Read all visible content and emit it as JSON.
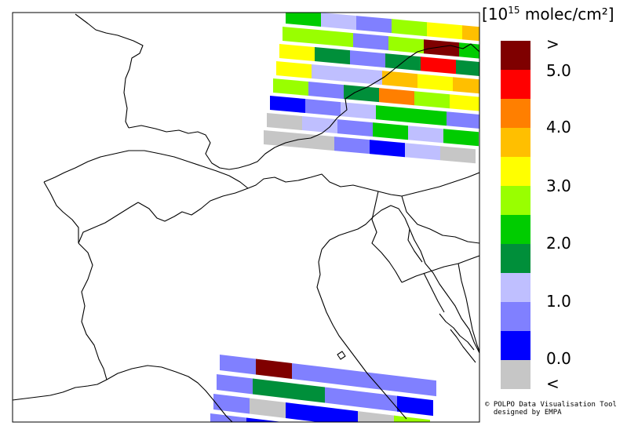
{
  "legend": {
    "unit_open": "[",
    "unit_pre": "10",
    "unit_exp": "15",
    "unit_post": " molec/cm²",
    "unit_close": "]",
    "classes": [
      {
        "color": "#7f0000"
      },
      {
        "color": "#ff0000"
      },
      {
        "color": "#ff7f00"
      },
      {
        "color": "#ffbf00"
      },
      {
        "color": "#ffff00"
      },
      {
        "color": "#99ff00"
      },
      {
        "color": "#00cc00"
      },
      {
        "color": "#008f3a"
      },
      {
        "color": "#bfbfff"
      },
      {
        "color": "#8080ff"
      },
      {
        "color": "#0000ff"
      },
      {
        "color": "#c6c6c6"
      }
    ],
    "labels": [
      ">",
      "5.0",
      "4.0",
      "3.0",
      "2.0",
      "1.0",
      "0.0",
      "<"
    ]
  },
  "credit": {
    "line1": "© POLPO Data Visualisation Tool",
    "line2": "  designed by EMPA"
  },
  "pixel_rows": {
    "north": [
      [
        "#00cc00",
        "#bfbfff",
        "#8080ff",
        "#99ff00",
        "#ffff00",
        "#ffbf00"
      ],
      [
        "#99ff00",
        "#99ff00",
        "#8080ff",
        "#99ff00",
        "#7f0000",
        "#00cc00"
      ],
      [
        "#ffff00",
        "#008f3a",
        "#8080ff",
        "#008f3a",
        "#ff0000",
        "#008f3a"
      ],
      [
        "#ffff00",
        "#bfbfff",
        "#bfbfff",
        "#ffbf00",
        "#ffff00",
        "#ffbf00"
      ],
      [
        "#99ff00",
        "#8080ff",
        "#008f3a",
        "#ff7f00",
        "#99ff00",
        "#ffff00"
      ],
      [
        "#0000ff",
        "#8080ff",
        "#bfbfff",
        "#00cc00",
        "#00cc00",
        "#8080ff"
      ],
      [
        "#c6c6c6",
        "#bfbfff",
        "#8080ff",
        "#00cc00",
        "#bfbfff",
        "#00cc00"
      ],
      [
        "#c6c6c6",
        "#c6c6c6",
        "#8080ff",
        "#0000ff",
        "#bfbfff",
        "#c6c6c6"
      ]
    ],
    "south": [
      [
        "#8080ff",
        "#7f0000",
        "#8080ff",
        "#8080ff",
        "#8080ff",
        "#8080ff"
      ],
      [
        "#8080ff",
        "#008f3a",
        "#008f3a",
        "#8080ff",
        "#8080ff",
        "#0000ff"
      ],
      [
        "#8080ff",
        "#c6c6c6",
        "#0000ff",
        "#0000ff",
        "#c6c6c6",
        "#99ff00"
      ],
      [
        "#8080ff",
        "#0000ff",
        "#8080ff",
        "#8080ff",
        "#bfbfff",
        "#bfbfff"
      ]
    ]
  }
}
